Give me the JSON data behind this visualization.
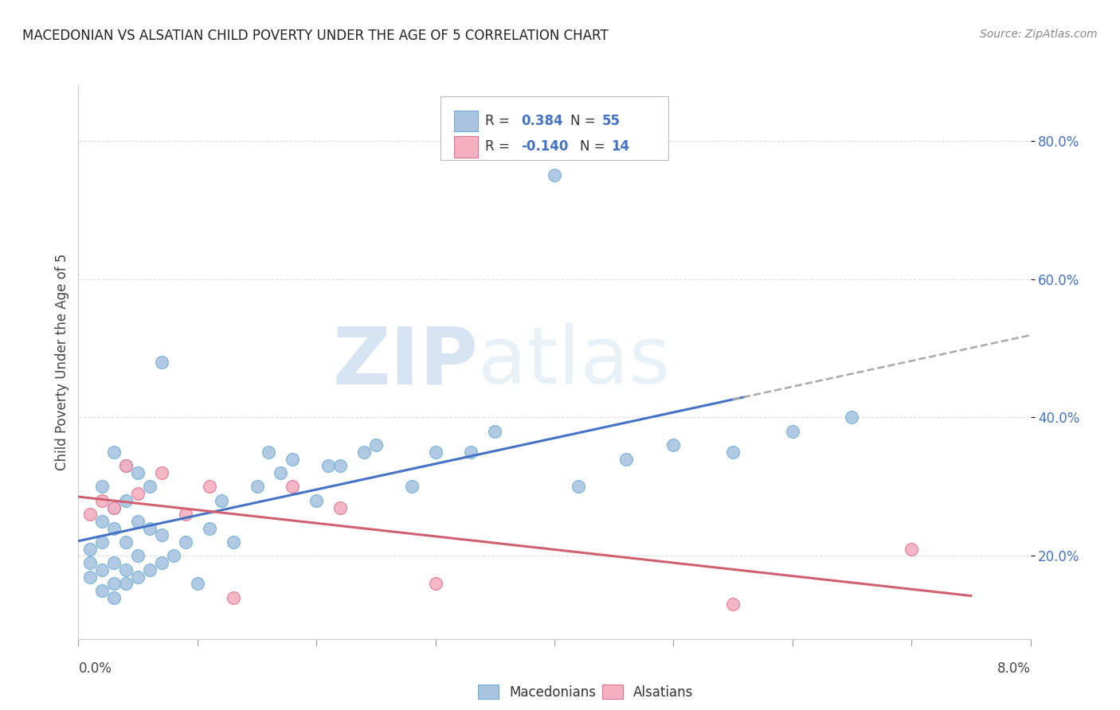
{
  "title": "MACEDONIAN VS ALSATIAN CHILD POVERTY UNDER THE AGE OF 5 CORRELATION CHART",
  "source": "Source: ZipAtlas.com",
  "ylabel": "Child Poverty Under the Age of 5",
  "xlim": [
    0.0,
    0.08
  ],
  "ylim": [
    0.08,
    0.88
  ],
  "yticks": [
    0.2,
    0.4,
    0.6,
    0.8
  ],
  "ytick_labels": [
    "20.0%",
    "40.0%",
    "60.0%",
    "80.0%"
  ],
  "macedonian_color": "#aac4e0",
  "macedonian_color_dark": "#6aaed6",
  "alsatian_color": "#f4b0c0",
  "alsatian_color_dark": "#e07090",
  "trend_blue": "#4472c4",
  "trend_pink": "#d06070",
  "trend_gray": "#aaaaaa",
  "watermark_zip": "ZIP",
  "watermark_atlas": "atlas",
  "background_color": "#ffffff",
  "grid_color": "#dddddd",
  "macedonian_x": [
    0.001,
    0.001,
    0.001,
    0.002,
    0.002,
    0.002,
    0.002,
    0.002,
    0.003,
    0.003,
    0.003,
    0.003,
    0.003,
    0.003,
    0.004,
    0.004,
    0.004,
    0.004,
    0.004,
    0.005,
    0.005,
    0.005,
    0.005,
    0.006,
    0.006,
    0.006,
    0.007,
    0.007,
    0.007,
    0.008,
    0.009,
    0.01,
    0.011,
    0.012,
    0.013,
    0.015,
    0.016,
    0.017,
    0.018,
    0.02,
    0.021,
    0.022,
    0.024,
    0.025,
    0.028,
    0.03,
    0.033,
    0.035,
    0.04,
    0.042,
    0.046,
    0.05,
    0.055,
    0.06,
    0.065
  ],
  "macedonian_y": [
    0.17,
    0.19,
    0.21,
    0.15,
    0.18,
    0.22,
    0.25,
    0.3,
    0.14,
    0.16,
    0.19,
    0.24,
    0.27,
    0.35,
    0.16,
    0.18,
    0.22,
    0.28,
    0.33,
    0.17,
    0.2,
    0.25,
    0.32,
    0.18,
    0.24,
    0.3,
    0.19,
    0.23,
    0.48,
    0.2,
    0.22,
    0.16,
    0.24,
    0.28,
    0.22,
    0.3,
    0.35,
    0.32,
    0.34,
    0.28,
    0.33,
    0.33,
    0.35,
    0.36,
    0.3,
    0.35,
    0.35,
    0.38,
    0.75,
    0.3,
    0.34,
    0.36,
    0.35,
    0.38,
    0.4
  ],
  "alsatian_x": [
    0.001,
    0.002,
    0.003,
    0.004,
    0.005,
    0.007,
    0.009,
    0.011,
    0.013,
    0.018,
    0.022,
    0.03,
    0.055,
    0.07
  ],
  "alsatian_y": [
    0.26,
    0.28,
    0.27,
    0.33,
    0.29,
    0.32,
    0.26,
    0.3,
    0.14,
    0.3,
    0.27,
    0.16,
    0.13,
    0.21
  ]
}
